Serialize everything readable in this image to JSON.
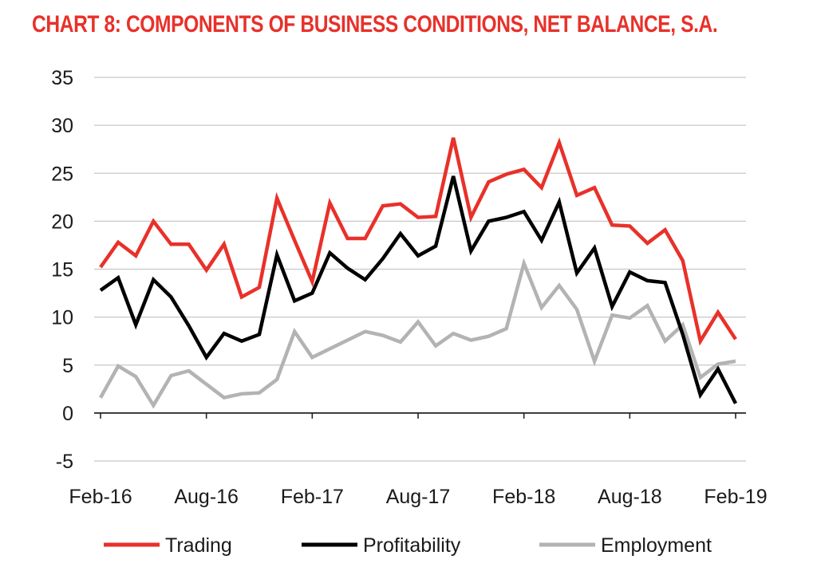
{
  "chart_data": {
    "type": "line",
    "title": "CHART 8: COMPONENTS OF BUSINESS CONDITIONS, NET BALANCE, S.A.",
    "xlabel": "",
    "ylabel": "",
    "ylim": [
      -5,
      35
    ],
    "yticks": [
      "35",
      "30",
      "25",
      "20",
      "15",
      "10",
      "5",
      "0",
      "-5"
    ],
    "xtick_labels": [
      "Feb-16",
      "Aug-16",
      "Feb-17",
      "Aug-17",
      "Feb-18",
      "Aug-18",
      "Feb-19"
    ],
    "grid": true,
    "legend_position": "bottom",
    "series": [
      {
        "name": "Trading",
        "color": "#e8312a",
        "values": [
          15.2,
          17.8,
          16.4,
          20.0,
          17.6,
          17.6,
          14.9,
          17.6,
          12.1,
          13.1,
          22.4,
          18.0,
          13.7,
          21.9,
          18.2,
          18.2,
          21.6,
          21.8,
          20.4,
          20.5,
          28.7,
          20.4,
          24.1,
          24.9,
          25.4,
          23.5,
          28.2,
          22.7,
          23.5,
          19.6,
          19.5,
          17.7,
          19.1,
          15.9,
          7.5,
          10.5,
          7.7
        ]
      },
      {
        "name": "Profitability",
        "color": "#000000",
        "values": [
          12.8,
          14.1,
          9.2,
          13.9,
          12.1,
          9.1,
          5.8,
          8.3,
          7.5,
          8.2,
          16.5,
          11.7,
          12.5,
          16.7,
          15.1,
          13.9,
          16.1,
          18.7,
          16.4,
          17.4,
          24.7,
          16.9,
          20.0,
          20.4,
          21.0,
          18.0,
          22.0,
          14.6,
          17.2,
          11.1,
          14.7,
          13.8,
          13.6,
          8.2,
          1.9,
          4.6,
          1.0
        ]
      },
      {
        "name": "Employment",
        "color": "#b3b3b3",
        "values": [
          1.6,
          4.9,
          3.8,
          0.8,
          3.9,
          4.4,
          3.0,
          1.6,
          2.0,
          2.1,
          3.5,
          8.5,
          5.8,
          6.7,
          7.6,
          8.5,
          8.1,
          7.4,
          9.5,
          7.0,
          8.3,
          7.6,
          8.0,
          8.8,
          15.6,
          11.0,
          13.3,
          10.8,
          5.4,
          10.2,
          9.9,
          11.2,
          7.5,
          9.2,
          3.7,
          5.1,
          5.4
        ]
      }
    ]
  }
}
